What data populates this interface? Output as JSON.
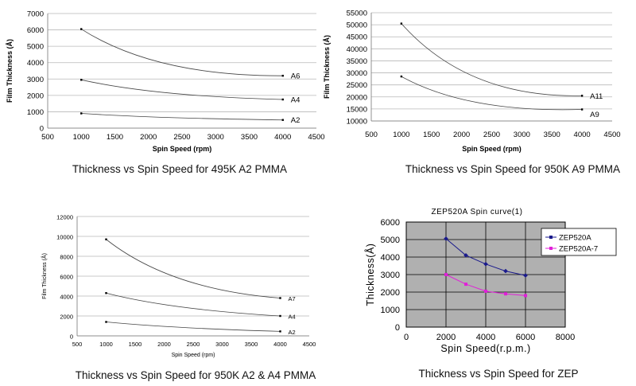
{
  "captions": [
    "Thickness vs Spin Speed for 495K A2 PMMA",
    "Thickness vs Spin Speed for 950K A9 PMMA",
    "Thickness vs Spin Speed for 950K A2 & A4 PMMA",
    "Thickness vs Spin Speed for ZEP"
  ],
  "chart_data": [
    {
      "type": "line",
      "xlabel": "Spin Speed (rpm)",
      "ylabel": "Film Thickness (Å)",
      "xlim": [
        500,
        4500
      ],
      "ylim": [
        0,
        7000
      ],
      "xticks": [
        500,
        1000,
        1500,
        2000,
        2500,
        3000,
        3500,
        4000,
        4500
      ],
      "yticks": [
        0,
        1000,
        2000,
        3000,
        4000,
        5000,
        6000,
        7000
      ],
      "grid": true,
      "series": [
        {
          "name": "A6",
          "x": [
            1000,
            4000
          ],
          "y": [
            6050,
            3200
          ],
          "curve_mid": 3900
        },
        {
          "name": "A4",
          "x": [
            1000,
            4000
          ],
          "y": [
            2950,
            1750
          ],
          "curve_mid": 2150
        },
        {
          "name": "A2",
          "x": [
            1000,
            4000
          ],
          "y": [
            900,
            500
          ],
          "curve_mid": 650
        }
      ]
    },
    {
      "type": "line",
      "xlabel": "Spin Speed (rpm)",
      "ylabel": "Film Thickness (Å)",
      "xlim": [
        500,
        4500
      ],
      "ylim": [
        10000,
        55000
      ],
      "xticks": [
        500,
        1000,
        1500,
        2000,
        2500,
        3000,
        3500,
        4000,
        4500
      ],
      "yticks": [
        10000,
        15000,
        20000,
        25000,
        30000,
        35000,
        40000,
        45000,
        50000,
        55000
      ],
      "grid": true,
      "series": [
        {
          "name": "A11",
          "x": [
            1000,
            4000
          ],
          "y": [
            50500,
            20500
          ],
          "curve_mid": 27500
        },
        {
          "name": "A9",
          "x": [
            1000,
            4000
          ],
          "y": [
            28500,
            14800
          ],
          "curve_mid": 17500
        }
      ]
    },
    {
      "type": "line",
      "xlabel": "Spin Speed (rpm)",
      "ylabel": "Film Thickness (Å)",
      "xlim": [
        500,
        4500
      ],
      "ylim": [
        0,
        12000
      ],
      "xticks": [
        500,
        1000,
        1500,
        2000,
        2500,
        3000,
        3500,
        4000,
        4500
      ],
      "yticks": [
        0,
        2000,
        4000,
        6000,
        8000,
        10000,
        12000
      ],
      "grid": true,
      "series": [
        {
          "name": "A7",
          "x": [
            1000,
            4000
          ],
          "y": [
            9700,
            3800
          ],
          "curve_mid": 5700
        },
        {
          "name": "A4",
          "x": [
            1000,
            4000
          ],
          "y": [
            4300,
            2000
          ],
          "curve_mid": 2900
        },
        {
          "name": "A2",
          "x": [
            1000,
            4000
          ],
          "y": [
            1400,
            450
          ],
          "curve_mid": 850
        }
      ]
    },
    {
      "type": "line",
      "title": "ZEP520A Spin curve(1)",
      "xlabel": "Spin Speed(r.p.m.)",
      "ylabel": "Thickness(Å)",
      "xlim": [
        0,
        8000
      ],
      "ylim": [
        0,
        6000
      ],
      "xticks": [
        0,
        2000,
        4000,
        6000,
        8000
      ],
      "yticks": [
        0,
        1000,
        2000,
        3000,
        4000,
        5000,
        6000
      ],
      "grid": true,
      "legend": "top-right",
      "series": [
        {
          "name": "ZEP520A",
          "color": "#1a1a8c",
          "x": [
            2000,
            3000,
            4000,
            5000,
            6000
          ],
          "y": [
            5050,
            4100,
            3600,
            3200,
            2950
          ]
        },
        {
          "name": "ZEP520A-7",
          "color": "#e020d8",
          "x": [
            2000,
            3000,
            4000,
            5000,
            6000
          ],
          "y": [
            3000,
            2450,
            2050,
            1900,
            1800
          ]
        }
      ]
    }
  ]
}
